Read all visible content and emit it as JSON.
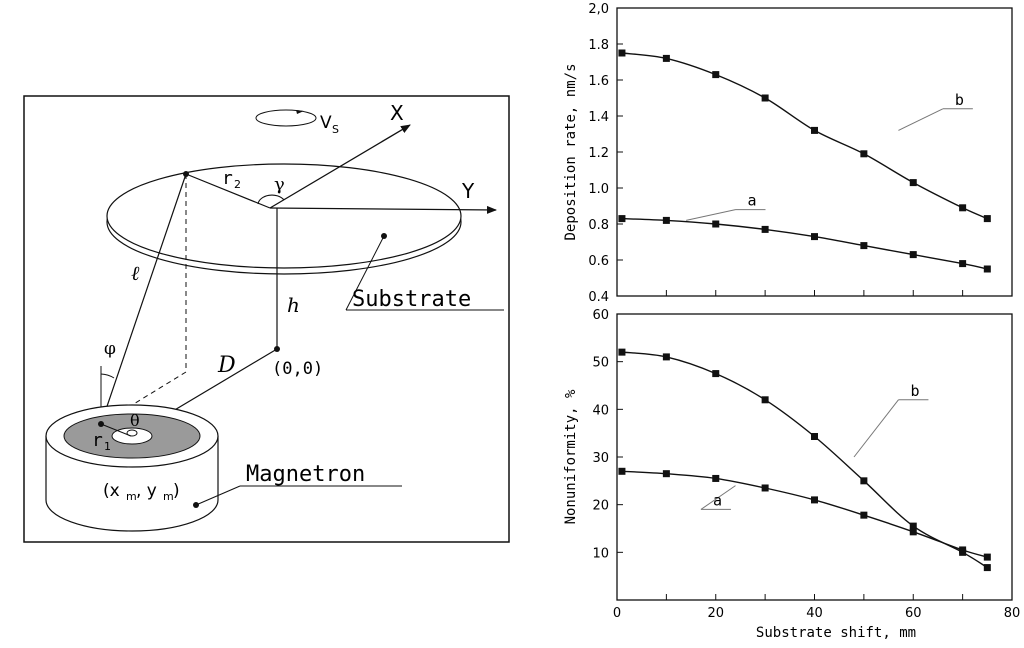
{
  "diagram": {
    "labels": {
      "x_axis": "X",
      "y_axis": "Y",
      "rotation": "V",
      "rotation_sub": "S",
      "r2": "r",
      "r2_sub": "2",
      "gamma": "γ",
      "substrate": "Substrate",
      "h": "h",
      "ell": "ℓ",
      "phi": "φ",
      "D": "D",
      "origin": "(0,0)",
      "theta": "θ",
      "r1": "r",
      "r1_sub": "1",
      "magnetron": "Magnetron",
      "xm_open": "(x",
      "xm_sub": "m",
      "ym_mid": ", y",
      "ym_sub": "m",
      "ym_close": ")"
    }
  },
  "chart_data": [
    {
      "type": "line",
      "title": "",
      "xlabel": "",
      "ylabel": "Deposition rate, nm/s",
      "xlim": [
        0,
        80
      ],
      "ylim": [
        0.4,
        2.0
      ],
      "yticks": [
        "0.4",
        "0.6",
        "0.8",
        "1.0",
        "1.2",
        "1.4",
        "1.6",
        "1.8",
        "2,0"
      ],
      "x": [
        1,
        10,
        20,
        30,
        40,
        50,
        60,
        70,
        75
      ],
      "series": [
        {
          "name": "a",
          "values": [
            0.83,
            0.82,
            0.8,
            0.77,
            0.73,
            0.68,
            0.63,
            0.58,
            0.55
          ]
        },
        {
          "name": "b",
          "values": [
            1.75,
            1.72,
            1.63,
            1.5,
            1.32,
            1.19,
            1.03,
            0.89,
            0.83
          ]
        }
      ]
    },
    {
      "type": "line",
      "title": "",
      "xlabel": "Substrate shift, mm",
      "ylabel": "Nonuniformity, %",
      "xlim": [
        0,
        80
      ],
      "ylim": [
        0,
        60
      ],
      "xticks": [
        "0",
        "20",
        "40",
        "60",
        "80"
      ],
      "yticks": [
        "10",
        "20",
        "30",
        "40",
        "50",
        "60"
      ],
      "x": [
        1,
        10,
        20,
        30,
        40,
        50,
        60,
        70,
        75
      ],
      "series": [
        {
          "name": "a",
          "values": [
            27,
            26.5,
            25.5,
            23.5,
            21,
            17.8,
            14.3,
            10.5,
            9
          ]
        },
        {
          "name": "b",
          "values": [
            52,
            51,
            47.5,
            42,
            34.3,
            25,
            15.5,
            10,
            6.8
          ]
        }
      ]
    }
  ]
}
